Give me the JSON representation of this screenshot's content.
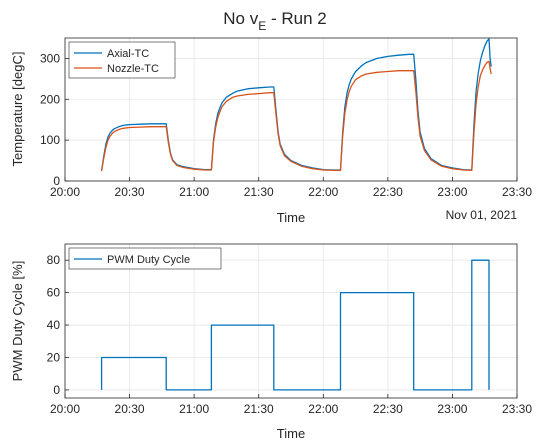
{
  "chart_data": [
    {
      "type": "line",
      "title_main": "No v",
      "title_sub": "E",
      "title_rest": " - Run 2",
      "xlabel": "Time",
      "ylabel": "Temperature [degC]",
      "date_label": "Nov 01, 2021",
      "xticks": [
        "20:00",
        "20:30",
        "21:00",
        "21:30",
        "22:00",
        "22:30",
        "23:00",
        "23:30"
      ],
      "xlim_minutes_after_20h": [
        0,
        210
      ],
      "ylim": [
        0,
        350
      ],
      "yticks": [
        0,
        100,
        200,
        300
      ],
      "grid": true,
      "legend_position": "top-left",
      "series": [
        {
          "name": "Axial-TC",
          "color": "#0072BD",
          "points": [
            [
              17,
              25
            ],
            [
              18,
              60
            ],
            [
              19,
              90
            ],
            [
              20,
              108
            ],
            [
              21,
              118
            ],
            [
              22,
              124
            ],
            [
              23,
              128
            ],
            [
              25,
              133
            ],
            [
              27,
              136
            ],
            [
              30,
              138
            ],
            [
              35,
              139
            ],
            [
              40,
              140
            ],
            [
              45,
              140
            ],
            [
              47,
              140
            ],
            [
              48,
              100
            ],
            [
              49,
              68
            ],
            [
              50,
              52
            ],
            [
              52,
              40
            ],
            [
              55,
              35
            ],
            [
              60,
              30
            ],
            [
              65,
              28
            ],
            [
              68,
              28
            ],
            [
              69,
              100
            ],
            [
              70,
              140
            ],
            [
              71,
              165
            ],
            [
              72,
              180
            ],
            [
              73,
              192
            ],
            [
              75,
              205
            ],
            [
              78,
              215
            ],
            [
              80,
              220
            ],
            [
              85,
              226
            ],
            [
              90,
              228
            ],
            [
              95,
              230
            ],
            [
              97,
              230
            ],
            [
              98,
              175
            ],
            [
              99,
              120
            ],
            [
              100,
              90
            ],
            [
              102,
              65
            ],
            [
              105,
              50
            ],
            [
              110,
              38
            ],
            [
              115,
              32
            ],
            [
              120,
              28
            ],
            [
              125,
              27
            ],
            [
              128,
              27
            ],
            [
              129,
              120
            ],
            [
              130,
              180
            ],
            [
              131,
              215
            ],
            [
              132,
              235
            ],
            [
              133,
              250
            ],
            [
              135,
              268
            ],
            [
              138,
              283
            ],
            [
              140,
              290
            ],
            [
              145,
              300
            ],
            [
              150,
              305
            ],
            [
              155,
              308
            ],
            [
              160,
              310
            ],
            [
              162,
              310
            ],
            [
              163,
              250
            ],
            [
              164,
              170
            ],
            [
              165,
              120
            ],
            [
              167,
              80
            ],
            [
              170,
              55
            ],
            [
              175,
              38
            ],
            [
              180,
              32
            ],
            [
              185,
              28
            ],
            [
              189,
              27
            ],
            [
              190,
              140
            ],
            [
              191,
              220
            ],
            [
              192,
              265
            ],
            [
              193,
              295
            ],
            [
              194,
              315
            ],
            [
              195,
              330
            ],
            [
              196,
              342
            ],
            [
              197,
              348
            ],
            [
              197.5,
              300
            ],
            [
              198,
              280
            ]
          ]
        },
        {
          "name": "Nozzle-TC",
          "color": "#D95319",
          "points": [
            [
              17,
              25
            ],
            [
              18,
              55
            ],
            [
              19,
              82
            ],
            [
              20,
              100
            ],
            [
              21,
              110
            ],
            [
              22,
              117
            ],
            [
              23,
              121
            ],
            [
              25,
              126
            ],
            [
              27,
              129
            ],
            [
              30,
              131
            ],
            [
              35,
              132
            ],
            [
              40,
              133
            ],
            [
              45,
              133
            ],
            [
              47,
              133
            ],
            [
              48,
              95
            ],
            [
              49,
              65
            ],
            [
              50,
              50
            ],
            [
              52,
              38
            ],
            [
              55,
              33
            ],
            [
              60,
              29
            ],
            [
              65,
              27
            ],
            [
              68,
              27
            ],
            [
              69,
              95
            ],
            [
              70,
              132
            ],
            [
              71,
              155
            ],
            [
              72,
              170
            ],
            [
              73,
              182
            ],
            [
              75,
              195
            ],
            [
              78,
              205
            ],
            [
              80,
              208
            ],
            [
              85,
              212
            ],
            [
              90,
              214
            ],
            [
              95,
              216
            ],
            [
              97,
              216
            ],
            [
              98,
              165
            ],
            [
              99,
              115
            ],
            [
              100,
              86
            ],
            [
              102,
              62
            ],
            [
              105,
              48
            ],
            [
              110,
              36
            ],
            [
              115,
              30
            ],
            [
              120,
              27
            ],
            [
              125,
              26
            ],
            [
              128,
              26
            ],
            [
              129,
              110
            ],
            [
              130,
              165
            ],
            [
              131,
              198
            ],
            [
              132,
              218
            ],
            [
              133,
              232
            ],
            [
              135,
              248
            ],
            [
              138,
              258
            ],
            [
              140,
              262
            ],
            [
              145,
              266
            ],
            [
              150,
              268
            ],
            [
              155,
              270
            ],
            [
              160,
              270
            ],
            [
              162,
              270
            ],
            [
              163,
              220
            ],
            [
              164,
              155
            ],
            [
              165,
              110
            ],
            [
              167,
              75
            ],
            [
              170,
              52
            ],
            [
              175,
              36
            ],
            [
              180,
              30
            ],
            [
              185,
              27
            ],
            [
              189,
              26
            ],
            [
              190,
              120
            ],
            [
              191,
              190
            ],
            [
              192,
              232
            ],
            [
              193,
              258
            ],
            [
              194,
              272
            ],
            [
              195,
              282
            ],
            [
              196,
              290
            ],
            [
              197,
              293
            ],
            [
              197.5,
              275
            ],
            [
              198,
              262
            ]
          ]
        }
      ]
    },
    {
      "type": "line",
      "xlabel": "Time",
      "ylabel": "PWM Duty Cycle [%]",
      "xticks": [
        "20:00",
        "20:30",
        "21:00",
        "21:30",
        "22:00",
        "22:30",
        "23:00",
        "23:30"
      ],
      "xlim_minutes_after_20h": [
        0,
        210
      ],
      "ylim": [
        -5,
        90
      ],
      "yticks": [
        0,
        20,
        40,
        60,
        80
      ],
      "grid": true,
      "legend_position": "top-left",
      "series": [
        {
          "name": "PWM Duty Cycle",
          "color": "#0072BD",
          "points": [
            [
              17,
              0
            ],
            [
              17,
              20
            ],
            [
              47,
              20
            ],
            [
              47,
              0
            ],
            [
              68,
              0
            ],
            [
              68,
              40
            ],
            [
              97,
              40
            ],
            [
              97,
              0
            ],
            [
              128,
              0
            ],
            [
              128,
              60
            ],
            [
              162,
              60
            ],
            [
              162,
              0
            ],
            [
              189,
              0
            ],
            [
              189,
              80
            ],
            [
              197,
              80
            ],
            [
              197,
              0
            ]
          ]
        }
      ]
    }
  ]
}
